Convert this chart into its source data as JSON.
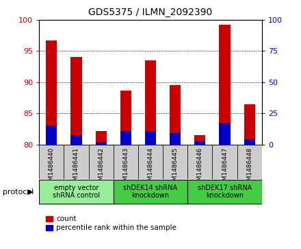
{
  "title": "GDS5375 / ILMN_2092390",
  "samples": [
    "GSM1486440",
    "GSM1486441",
    "GSM1486442",
    "GSM1486443",
    "GSM1486444",
    "GSM1486445",
    "GSM1486446",
    "GSM1486447",
    "GSM1486448"
  ],
  "count_values": [
    96.7,
    94.0,
    82.2,
    88.7,
    93.5,
    89.5,
    81.5,
    99.2,
    86.5
  ],
  "percentile_values": [
    83.0,
    81.5,
    80.4,
    82.2,
    82.2,
    81.8,
    80.5,
    83.5,
    80.8
  ],
  "ylim": [
    80,
    100
  ],
  "yticks_left": [
    80,
    85,
    90,
    95,
    100
  ],
  "yticks_right": [
    0,
    25,
    50,
    75,
    100
  ],
  "y2lim": [
    0,
    100
  ],
  "bar_color_red": "#CC0000",
  "bar_color_blue": "#0000CC",
  "bar_width": 0.45,
  "protocols": [
    {
      "label": "empty vector\nshRNA control",
      "start": 0,
      "end": 3,
      "color": "#99ee99"
    },
    {
      "label": "shDEK14 shRNA\nknockdown",
      "start": 3,
      "end": 6,
      "color": "#44cc44"
    },
    {
      "label": "shDEK17 shRNA\nknockdown",
      "start": 6,
      "end": 9,
      "color": "#44cc44"
    }
  ],
  "legend_count": "count",
  "legend_percentile": "percentile rank within the sample",
  "protocol_label": "protocol",
  "tick_color_left": "#CC0000",
  "tick_color_right": "#0000CC",
  "background_gray": "#cccccc",
  "background_white": "#ffffff"
}
